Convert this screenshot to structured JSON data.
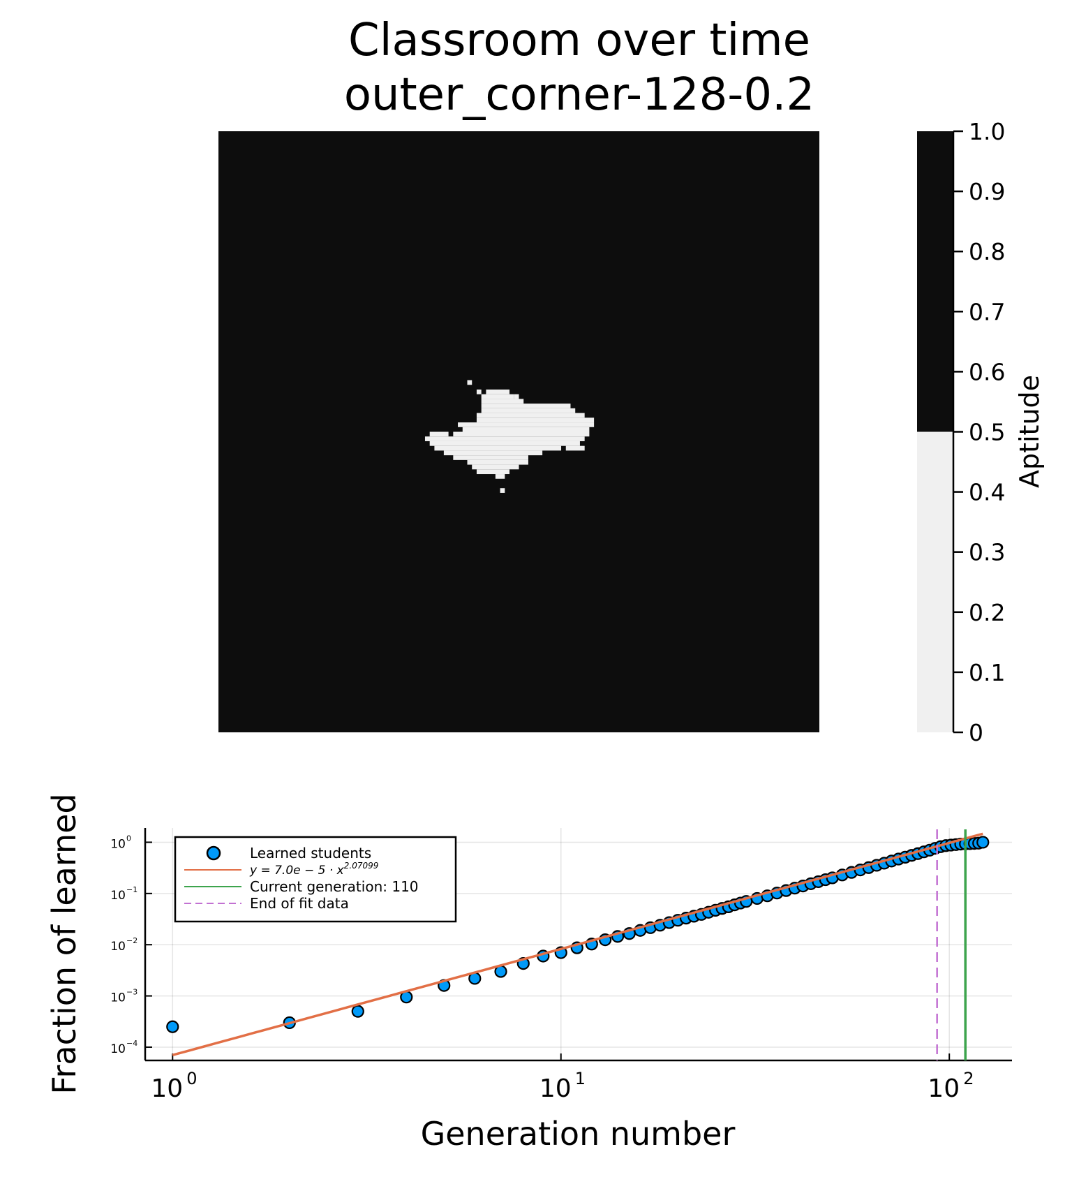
{
  "chart_data": [
    {
      "type": "heatmap",
      "title_line1": "Classroom over time",
      "title_line2": "outer_corner-128-0.2",
      "grid_size": 128,
      "colorbar": {
        "label": "Aptitude",
        "range": [
          0,
          1
        ],
        "ticks": [
          "0",
          "0.1",
          "0.2",
          "0.3",
          "0.4",
          "0.5",
          "0.6",
          "0.7",
          "0.8",
          "0.9",
          "1.0"
        ],
        "tick_values": [
          0,
          0.1,
          0.2,
          0.3,
          0.4,
          0.5,
          0.6,
          0.7,
          0.8,
          0.9,
          1.0
        ],
        "low_color": "#f0f0f0",
        "high_color": "#0d0d0d",
        "threshold": 0.5
      },
      "learned_region_rows": [
        {
          "row": 53,
          "spans": [
            [
              53,
              53
            ]
          ]
        },
        {
          "row": 55,
          "spans": [
            [
              55,
              55
            ],
            [
              57,
              61
            ]
          ]
        },
        {
          "row": 56,
          "spans": [
            [
              56,
              62
            ],
            [
              63,
              63
            ]
          ]
        },
        {
          "row": 57,
          "spans": [
            [
              56,
              64
            ]
          ]
        },
        {
          "row": 58,
          "spans": [
            [
              56,
              74
            ]
          ]
        },
        {
          "row": 59,
          "spans": [
            [
              56,
              75
            ]
          ]
        },
        {
          "row": 60,
          "spans": [
            [
              55,
              77
            ]
          ]
        },
        {
          "row": 61,
          "spans": [
            [
              55,
              79
            ]
          ]
        },
        {
          "row": 62,
          "spans": [
            [
              51,
              79
            ]
          ]
        },
        {
          "row": 63,
          "spans": [
            [
              52,
              78
            ]
          ]
        },
        {
          "row": 64,
          "spans": [
            [
              45,
              48
            ],
            [
              50,
              78
            ]
          ]
        },
        {
          "row": 65,
          "spans": [
            [
              44,
              77
            ]
          ]
        },
        {
          "row": 66,
          "spans": [
            [
              45,
              76
            ]
          ]
        },
        {
          "row": 67,
          "spans": [
            [
              46,
              72
            ],
            [
              74,
              77
            ]
          ]
        },
        {
          "row": 68,
          "spans": [
            [
              48,
              68
            ]
          ]
        },
        {
          "row": 69,
          "spans": [
            [
              50,
              65
            ]
          ]
        },
        {
          "row": 70,
          "spans": [
            [
              53,
              65
            ]
          ]
        },
        {
          "row": 71,
          "spans": [
            [
              54,
              63
            ]
          ]
        },
        {
          "row": 72,
          "spans": [
            [
              55,
              61
            ]
          ]
        },
        {
          "row": 73,
          "spans": [
            [
              59,
              60
            ]
          ]
        },
        {
          "row": 76,
          "spans": [
            [
              60,
              60
            ]
          ]
        }
      ]
    },
    {
      "type": "scatter",
      "xlabel": "Generation number",
      "ylabel": "Fraction of learned",
      "xscale": "log10",
      "yscale": "log10",
      "xlim": [
        0.85,
        145
      ],
      "ylim": [
        5.5e-05,
        1.9
      ],
      "x_ticks": [
        1,
        10,
        100
      ],
      "x_tick_exponents": [
        "0",
        "1",
        "2"
      ],
      "y_ticks": [
        0.0001,
        0.001,
        0.01,
        0.1,
        1
      ],
      "y_tick_exponents": [
        "−4",
        "−3",
        "−2",
        "−1",
        "0"
      ],
      "grid": true,
      "series": [
        {
          "name": "Learned students",
          "kind": "scatter",
          "color": "#009af9",
          "x": [
            1,
            2,
            3,
            4,
            5,
            6,
            7,
            8,
            9,
            10,
            11,
            12,
            13,
            14,
            15,
            16,
            17,
            18,
            19,
            20,
            21,
            22,
            23,
            24,
            25,
            26,
            27,
            28,
            29,
            30,
            32,
            34,
            36,
            38,
            40,
            42,
            44,
            46,
            48,
            50,
            53,
            56,
            59,
            62,
            65,
            68,
            71,
            74,
            77,
            80,
            83,
            86,
            89,
            92,
            95,
            98,
            101,
            104,
            107,
            110,
            113,
            116,
            119,
            122
          ],
          "y": [
            0.00025,
            0.0003,
            0.0005,
            0.00095,
            0.0016,
            0.0022,
            0.003,
            0.0043,
            0.006,
            0.007,
            0.0087,
            0.0103,
            0.0125,
            0.0145,
            0.0165,
            0.019,
            0.0215,
            0.024,
            0.027,
            0.03,
            0.033,
            0.036,
            0.039,
            0.043,
            0.047,
            0.051,
            0.055,
            0.06,
            0.065,
            0.07,
            0.08,
            0.09,
            0.102,
            0.114,
            0.127,
            0.14,
            0.155,
            0.17,
            0.186,
            0.202,
            0.23,
            0.258,
            0.288,
            0.32,
            0.355,
            0.39,
            0.43,
            0.47,
            0.51,
            0.555,
            0.6,
            0.65,
            0.7,
            0.76,
            0.82,
            0.86,
            0.88,
            0.9,
            0.92,
            0.93,
            0.94,
            0.95,
            0.96,
            1.0
          ]
        },
        {
          "name": "y = 7.0e − 5 · x^2.07099",
          "kind": "line",
          "color": "#e26f46",
          "coef": 7e-05,
          "exponent": 2.07099,
          "x_range": [
            1,
            122
          ]
        },
        {
          "name": "Current generation: 110",
          "kind": "vline",
          "color": "#3da44d",
          "x": 110
        },
        {
          "name": "End of fit data",
          "kind": "vline",
          "style": "dashed",
          "color": "#c271d2",
          "x": 93
        }
      ],
      "legend": {
        "placement": "top-left",
        "labels": {
          "scatter": "Learned students",
          "fit_prefix": "y = 7.0e − 5 · x",
          "fit_exponent": "2.07099",
          "current": "Current generation: 110",
          "end_fit": "End of fit data"
        }
      }
    }
  ]
}
